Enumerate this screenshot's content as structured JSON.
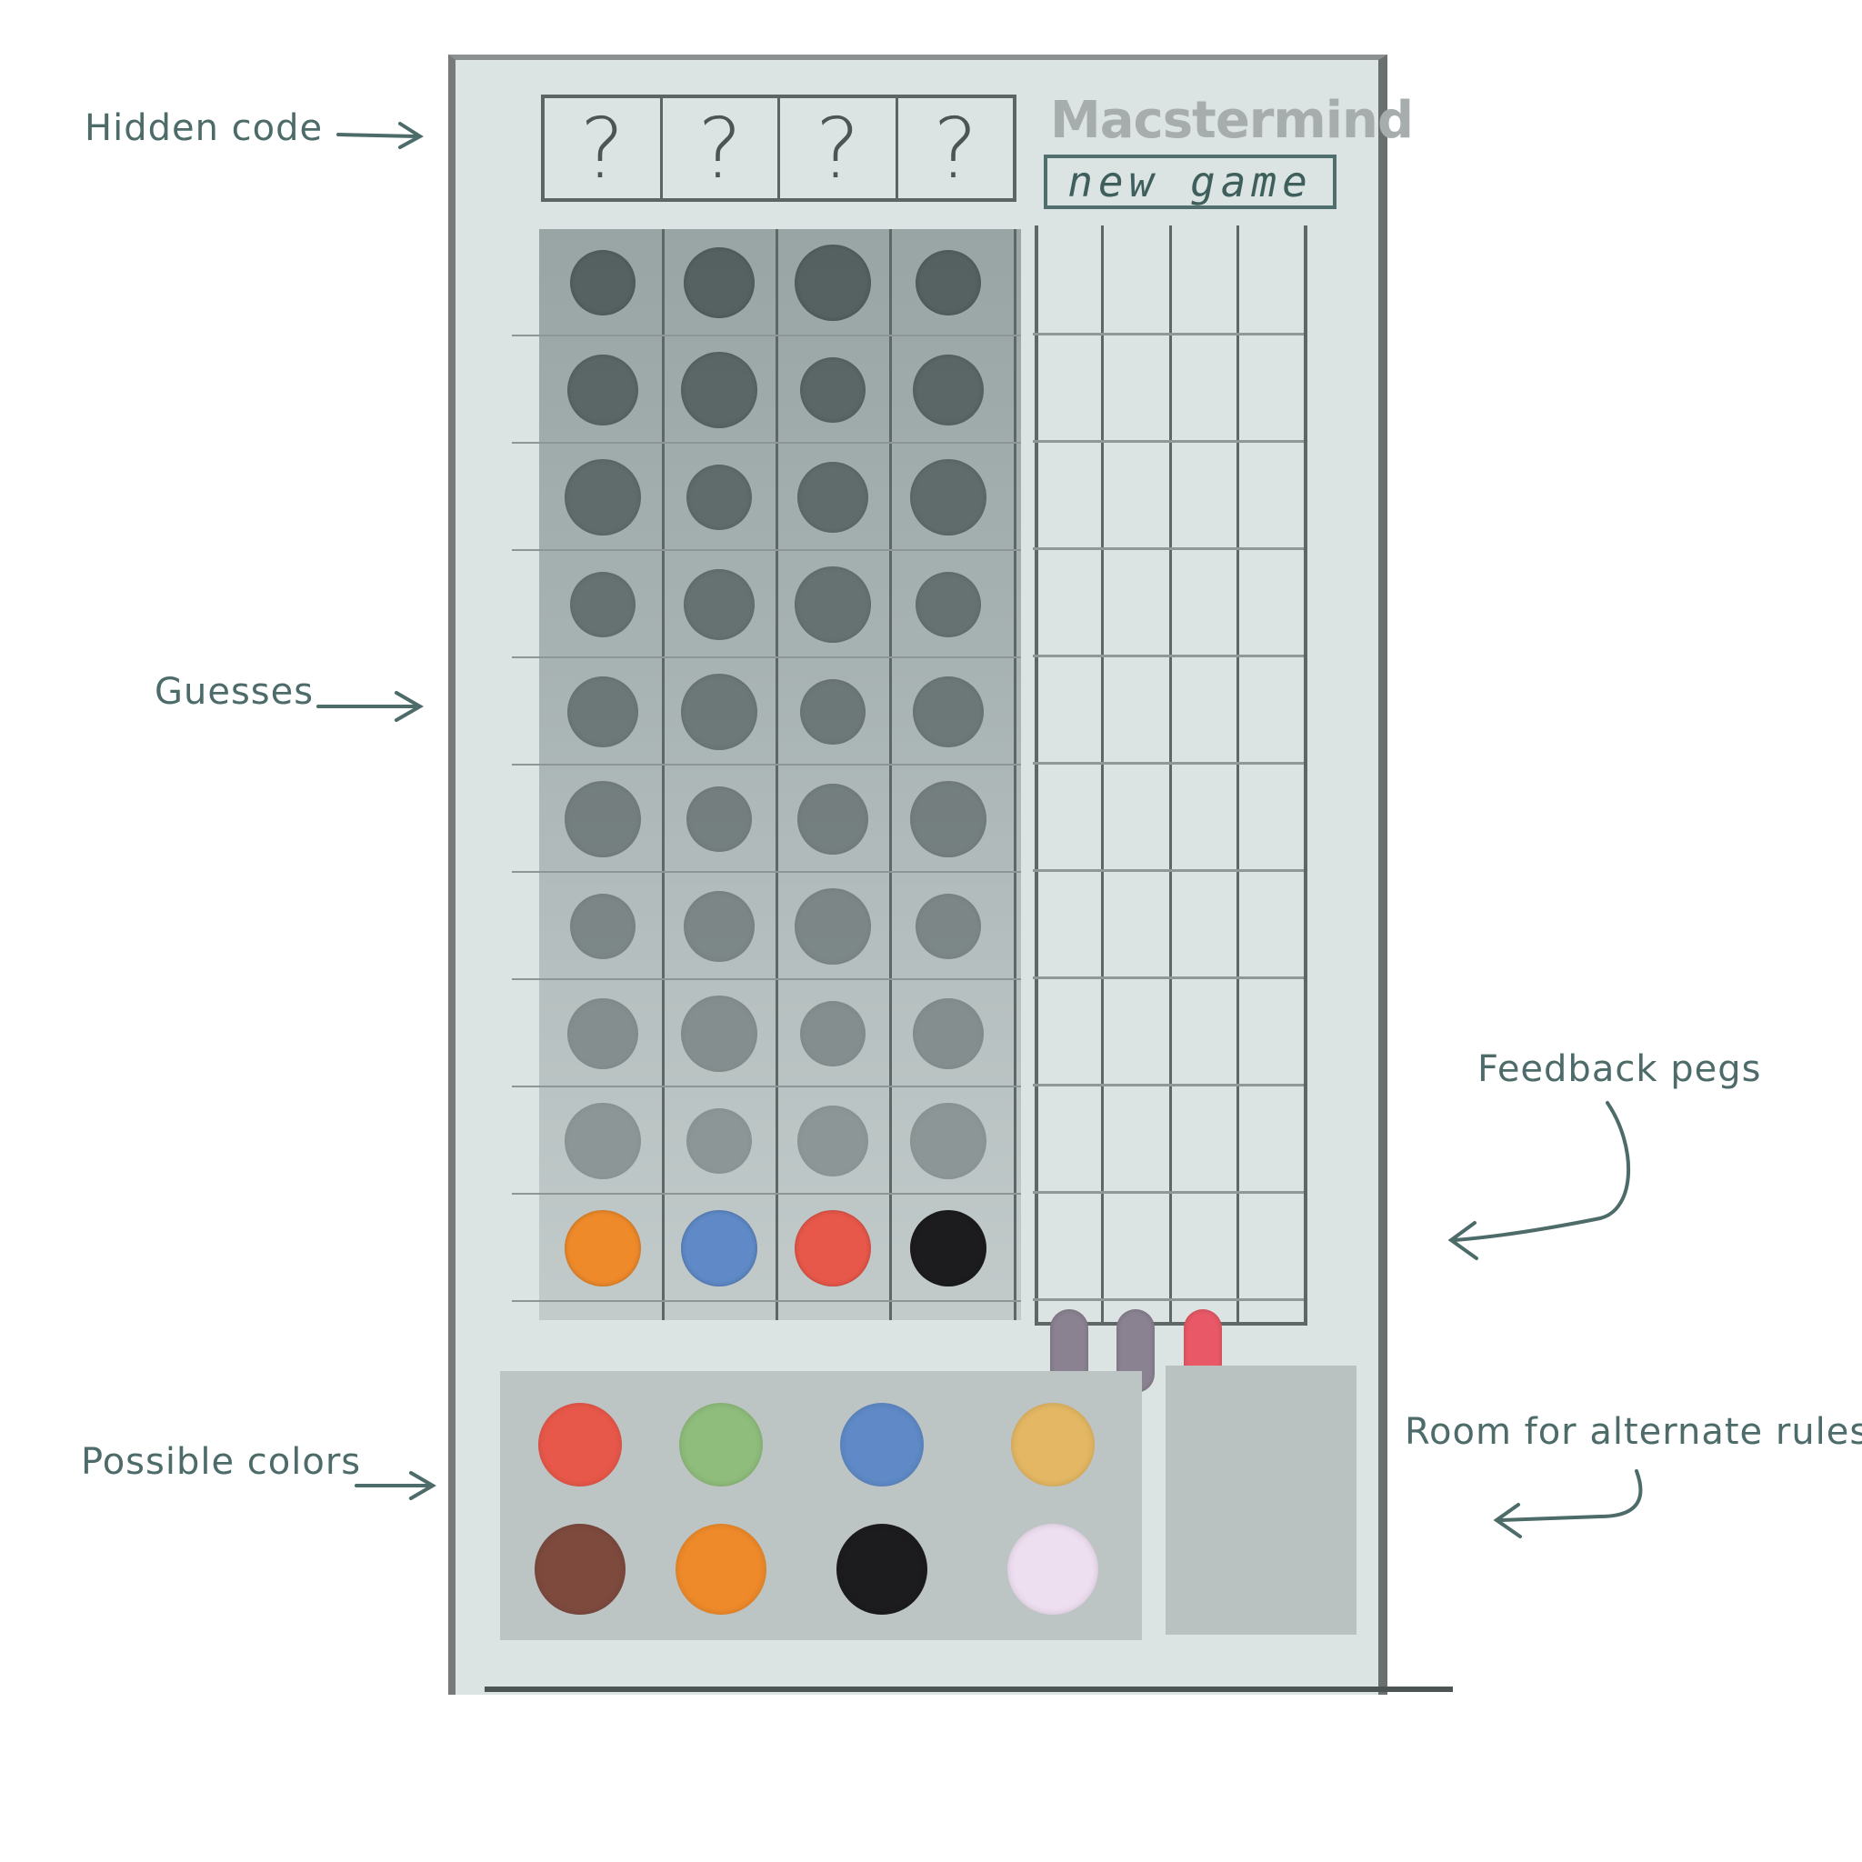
{
  "annotations": {
    "hidden_code": "Hidden code",
    "guesses": "Guesses",
    "feedback_pegs": "Feedback pegs",
    "possible_colors": "Possible colors",
    "alternate_rules": "Room for alternate rules"
  },
  "header": {
    "title": "Macstermind",
    "new_game_label": "new game"
  },
  "hidden_code": [
    "?",
    "?",
    "?",
    "?"
  ],
  "colors": {
    "board": "#dbe3e3",
    "empty_peg": "#4a5556",
    "red": "#e8584a",
    "green": "#8fbd7c",
    "blue": "#5f8ac7",
    "yellow": "#e3b763",
    "brown": "#7e4a3e",
    "orange": "#ee8a2a",
    "black": "#1c1c1e",
    "white": "#eedff0",
    "feedback_gray": "#8a8290",
    "feedback_red": "#e85866"
  },
  "current_guess": [
    "orange",
    "blue",
    "red",
    "black"
  ],
  "feedback": [
    "feedback_gray",
    "feedback_gray",
    "feedback_red"
  ],
  "palette": [
    "red",
    "green",
    "blue",
    "yellow",
    "brown",
    "orange",
    "black",
    "white"
  ]
}
